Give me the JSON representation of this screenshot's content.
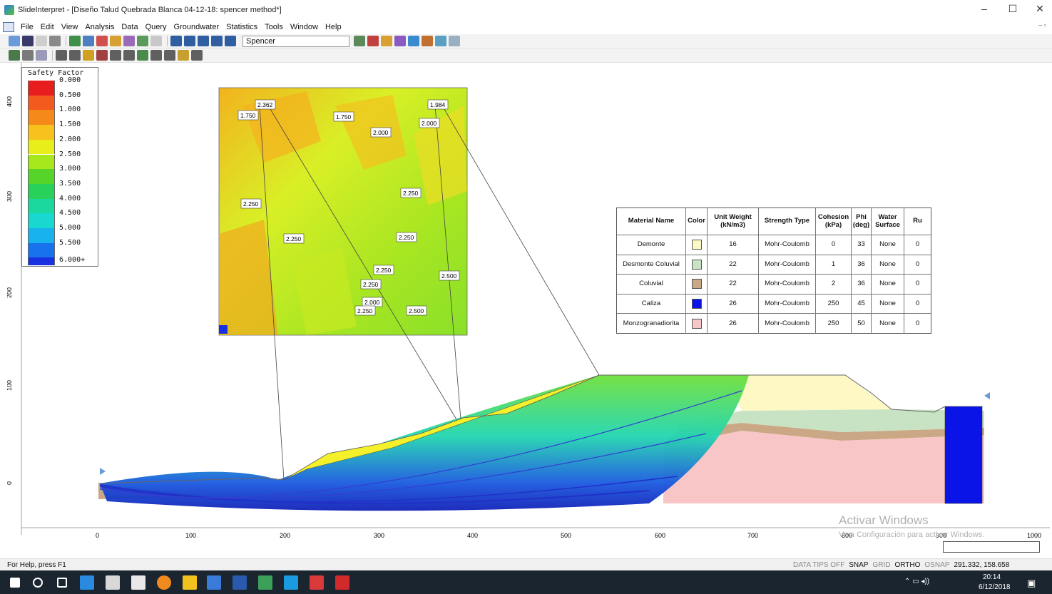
{
  "window": {
    "title": "SlideInterpret - [Diseño Talud Quebrada Blanca 04-12-18: spencer method*]",
    "controls": {
      "minimize": "–",
      "restore": "☐",
      "close": "✕"
    }
  },
  "menu": {
    "items": [
      "File",
      "Edit",
      "View",
      "Analysis",
      "Data",
      "Query",
      "Groundwater",
      "Statistics",
      "Tools",
      "Window",
      "Help"
    ]
  },
  "toolbar": {
    "method_value": "Spencer"
  },
  "legend": {
    "title": "Safety Factor",
    "items": [
      {
        "label": "0.000",
        "color": "#e81e1e"
      },
      {
        "label": "0.500",
        "color": "#f25a1e"
      },
      {
        "label": "1.000",
        "color": "#f58a1a"
      },
      {
        "label": "1.500",
        "color": "#f7c21e"
      },
      {
        "label": "2.000",
        "color": "#e8ee1a"
      },
      {
        "label": "2.500",
        "color": "#a6e81c"
      },
      {
        "label": "3.000",
        "color": "#56d42a"
      },
      {
        "label": "3.500",
        "color": "#28d25a"
      },
      {
        "label": "4.000",
        "color": "#1ad89e"
      },
      {
        "label": "4.500",
        "color": "#18d8d0"
      },
      {
        "label": "5.000",
        "color": "#18b2ee"
      },
      {
        "label": "5.500",
        "color": "#1872ee"
      },
      {
        "label": "6.000+",
        "color": "#1830e0"
      }
    ]
  },
  "axes": {
    "x_ticks": [
      "0",
      "100",
      "200",
      "300",
      "400",
      "500",
      "600",
      "700",
      "800",
      "900",
      "1000"
    ],
    "y_ticks": [
      "400",
      "300",
      "200",
      "100",
      "0"
    ]
  },
  "inset_labels": [
    "2.362",
    "1.750",
    "1.750",
    "2.000",
    "1.984",
    "2.000",
    "2.250",
    "2.250",
    "2.250",
    "2.250",
    "2.250",
    "2.250",
    "2.500",
    "2.000",
    "2.250",
    "2.500"
  ],
  "material_table": {
    "headers": [
      "Material Name",
      "Color",
      "Unit Weight (kN/m3)",
      "Strength Type",
      "Cohesion (kPa)",
      "Phi (deg)",
      "Water Surface",
      "Ru"
    ],
    "rows": [
      {
        "name": "Demonte",
        "color": "#fdf8c4",
        "unit_weight": "16",
        "strength": "Mohr-Coulomb",
        "cohesion": "0",
        "phi": "33",
        "water": "None",
        "ru": "0"
      },
      {
        "name": "Desmonte Coluvial",
        "color": "#c8e3c3",
        "unit_weight": "22",
        "strength": "Mohr-Coulomb",
        "cohesion": "1",
        "phi": "36",
        "water": "None",
        "ru": "0"
      },
      {
        "name": "Coluvial",
        "color": "#caa886",
        "unit_weight": "22",
        "strength": "Mohr-Coulomb",
        "cohesion": "2",
        "phi": "36",
        "water": "None",
        "ru": "0"
      },
      {
        "name": "Caliza",
        "color": "#0a14e6",
        "unit_weight": "26",
        "strength": "Mohr-Coulomb",
        "cohesion": "250",
        "phi": "45",
        "water": "None",
        "ru": "0"
      },
      {
        "name": "Monzogranadiorita",
        "color": "#f8c6c6",
        "unit_weight": "26",
        "strength": "Mohr-Coulomb",
        "cohesion": "250",
        "phi": "50",
        "water": "None",
        "ru": "0"
      }
    ]
  },
  "watermark": {
    "line1": "Activar Windows",
    "line2": "Ve a Configuración para activar Windows."
  },
  "status": {
    "help": "For Help, press F1",
    "toggles": [
      {
        "label": "DATA TIPS OFF",
        "active": false
      },
      {
        "label": "SNAP",
        "active": true
      },
      {
        "label": "GRID",
        "active": false
      },
      {
        "label": "ORTHO",
        "active": true
      },
      {
        "label": "OSNAP",
        "active": false
      }
    ],
    "coords": "291.332,  158.658"
  },
  "taskbar": {
    "time": "20:14",
    "date": "6/12/2018"
  }
}
